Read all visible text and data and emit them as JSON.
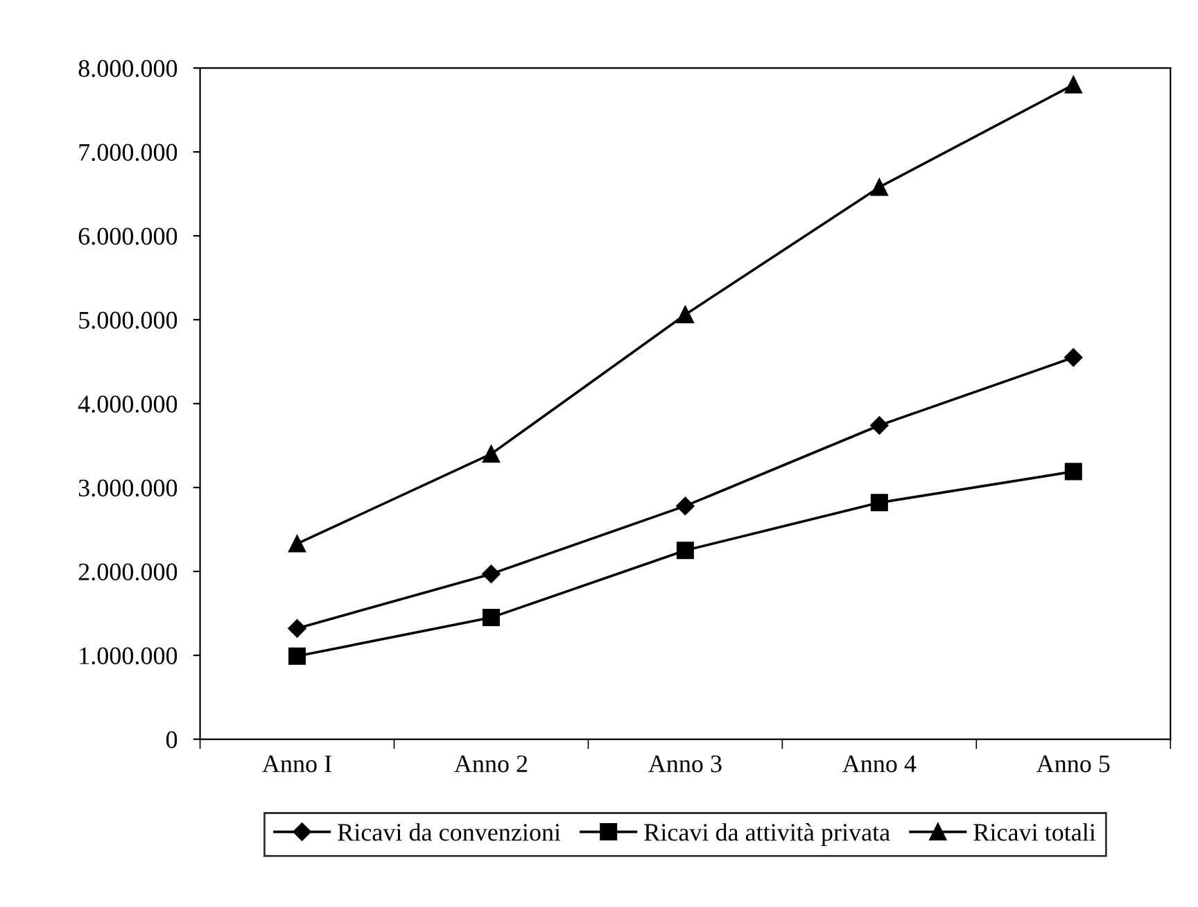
{
  "chart_data": {
    "type": "line",
    "categories": [
      "Anno I",
      "Anno 2",
      "Anno 3",
      "Anno 4",
      "Anno 5"
    ],
    "series": [
      {
        "name": "Ricavi da convenzioni",
        "color": "#000000",
        "marker": "diamond",
        "values": [
          1320000,
          1970000,
          2780000,
          3740000,
          4550000
        ]
      },
      {
        "name": "Ricavi da attività privata",
        "color": "#000000",
        "marker": "square",
        "values": [
          990000,
          1450000,
          2250000,
          2820000,
          3190000
        ]
      },
      {
        "name": "Ricavi totali",
        "color": "#000000",
        "marker": "triangle",
        "values": [
          2330000,
          3400000,
          5060000,
          6580000,
          7800000
        ]
      }
    ],
    "ylim": [
      0,
      8000000
    ],
    "yticks": [
      0,
      {
        "value": 1000000,
        "label": "1.000.000"
      },
      {
        "value": 2000000,
        "label": "2.000.000"
      },
      {
        "value": 3000000,
        "label": "3.000.000"
      },
      {
        "value": 4000000,
        "label": "4.000.000"
      },
      {
        "value": 5000000,
        "label": "5.000.000"
      },
      {
        "value": 6000000,
        "label": "6.000.000"
      },
      {
        "value": 7000000,
        "label": "7.000.000"
      },
      {
        "value": 8000000,
        "label": "8.000.000"
      }
    ],
    "grid": false,
    "legend": "bottom",
    "line_style": "solid"
  }
}
